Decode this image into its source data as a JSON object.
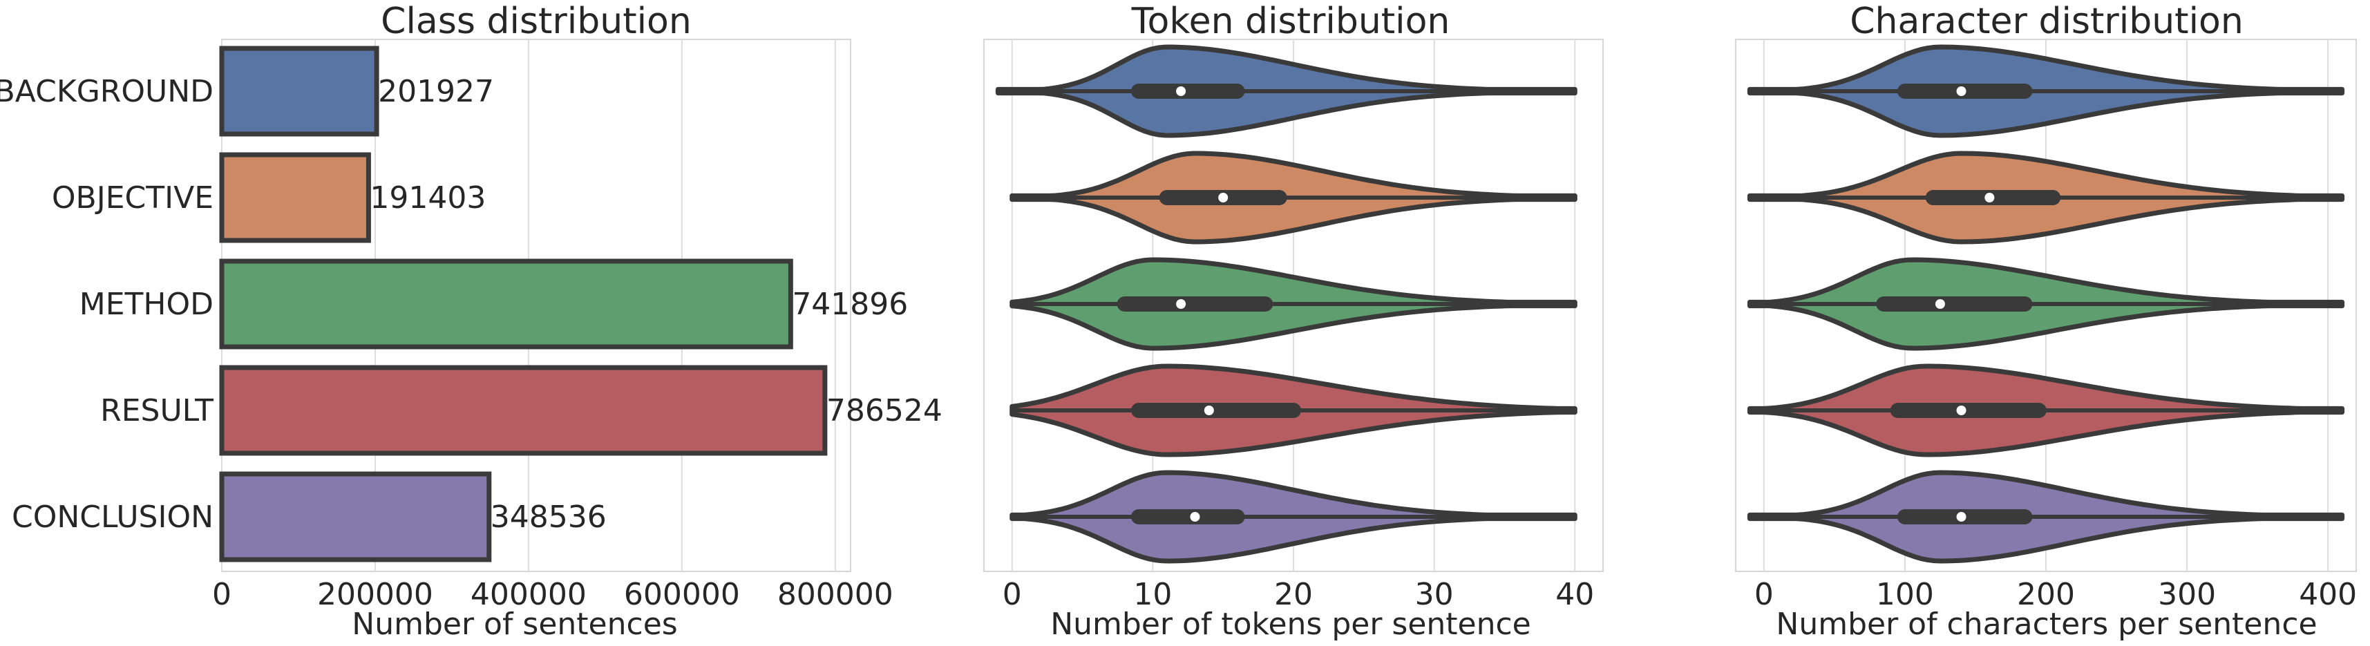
{
  "chart_data": [
    {
      "type": "bar",
      "orientation": "horizontal",
      "title": "Class distribution",
      "xlabel": "Number of sentences",
      "ylabel": "",
      "categories": [
        "BACKGROUND",
        "OBJECTIVE",
        "METHOD",
        "RESULT",
        "CONCLUSION"
      ],
      "values": [
        201927,
        191403,
        741896,
        786524,
        348536
      ],
      "value_labels": [
        "201927",
        "191403",
        "741896",
        "786524",
        "348536"
      ],
      "colors": [
        "#5875a4",
        "#cc8963",
        "#5f9e6e",
        "#b55d60",
        "#857aab"
      ],
      "xlim": [
        0,
        820000
      ],
      "xticks": [
        0,
        200000,
        400000,
        600000,
        800000
      ],
      "xtick_labels": [
        "0",
        "200000",
        "400000",
        "600000",
        "800000"
      ],
      "grid": true
    },
    {
      "type": "violin",
      "orientation": "horizontal",
      "title": "Token distribution",
      "xlabel": "Number of tokens per sentence",
      "categories": [
        "BACKGROUND",
        "OBJECTIVE",
        "METHOD",
        "RESULT",
        "CONCLUSION"
      ],
      "colors": [
        "#5875a4",
        "#cc8963",
        "#5f9e6e",
        "#b55d60",
        "#857aab"
      ],
      "xlim": [
        -2,
        42
      ],
      "xticks": [
        0,
        10,
        20,
        30,
        40
      ],
      "xtick_labels": [
        "0",
        "10",
        "20",
        "30",
        "40"
      ],
      "grid": true,
      "series": [
        {
          "range": [
            -1,
            40
          ],
          "q1": 9,
          "median": 12,
          "q3": 16,
          "mode": 11,
          "left_width": 3.5,
          "right_width": 9
        },
        {
          "range": [
            0,
            40
          ],
          "q1": 11,
          "median": 15,
          "q3": 19,
          "mode": 13,
          "left_width": 4,
          "right_width": 9
        },
        {
          "range": [
            0,
            40
          ],
          "q1": 8,
          "median": 12,
          "q3": 18,
          "mode": 10,
          "left_width": 4,
          "right_width": 10
        },
        {
          "range": [
            0,
            40
          ],
          "q1": 9,
          "median": 14,
          "q3": 20,
          "mode": 11,
          "left_width": 5,
          "right_width": 11
        },
        {
          "range": [
            0,
            40
          ],
          "q1": 9,
          "median": 13,
          "q3": 16,
          "mode": 11,
          "left_width": 4,
          "right_width": 9
        }
      ]
    },
    {
      "type": "violin",
      "orientation": "horizontal",
      "title": "Character distribution",
      "xlabel": "Number of characters per sentence",
      "categories": [
        "BACKGROUND",
        "OBJECTIVE",
        "METHOD",
        "RESULT",
        "CONCLUSION"
      ],
      "colors": [
        "#5875a4",
        "#cc8963",
        "#5f9e6e",
        "#b55d60",
        "#857aab"
      ],
      "xlim": [
        -20,
        420
      ],
      "xticks": [
        0,
        100,
        200,
        300,
        400
      ],
      "xtick_labels": [
        "0",
        "100",
        "200",
        "300",
        "400"
      ],
      "grid": true,
      "series": [
        {
          "range": [
            -10,
            410
          ],
          "q1": 100,
          "median": 140,
          "q3": 185,
          "mode": 125,
          "left_width": 40,
          "right_width": 95
        },
        {
          "range": [
            -10,
            410
          ],
          "q1": 120,
          "median": 160,
          "q3": 205,
          "mode": 140,
          "left_width": 45,
          "right_width": 95
        },
        {
          "range": [
            -10,
            410
          ],
          "q1": 85,
          "median": 125,
          "q3": 185,
          "mode": 105,
          "left_width": 40,
          "right_width": 100
        },
        {
          "range": [
            -10,
            410
          ],
          "q1": 95,
          "median": 140,
          "q3": 195,
          "mode": 115,
          "left_width": 45,
          "right_width": 105
        },
        {
          "range": [
            -10,
            410
          ],
          "q1": 100,
          "median": 140,
          "q3": 185,
          "mode": 125,
          "left_width": 40,
          "right_width": 90
        }
      ]
    }
  ]
}
